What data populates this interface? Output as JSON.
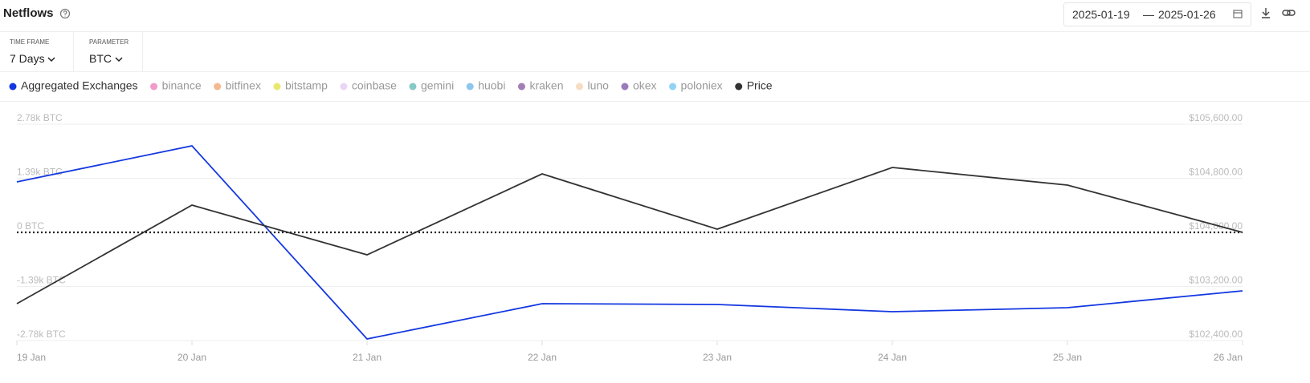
{
  "header": {
    "title": "Netflows",
    "date_from": "2025-01-19",
    "date_separator": "—",
    "date_to": "2025-01-26"
  },
  "filters": [
    {
      "label": "TIME FRAME",
      "value": "7 Days"
    },
    {
      "label": "PARAMETER",
      "value": "BTC"
    }
  ],
  "chart_data": {
    "type": "line",
    "categories": [
      "19 Jan",
      "20 Jan",
      "21 Jan",
      "22 Jan",
      "23 Jan",
      "24 Jan",
      "25 Jan",
      "26 Jan"
    ],
    "series": [
      {
        "name": "Aggregated Exchanges",
        "color": "#1438e0",
        "values": [
          1297,
          2224,
          -2739,
          -1833,
          -1853,
          -2039,
          -1936,
          -1503
        ]
      },
      {
        "name": "Price",
        "color": "#333333",
        "axis": "y2",
        "values": [
          102945,
          104403,
          103668,
          104865,
          104047,
          104960,
          104699,
          104000
        ]
      }
    ],
    "hidden_series": [
      {
        "name": "binance",
        "color": "#f29ac9"
      },
      {
        "name": "bitfinex",
        "color": "#f5b88f"
      },
      {
        "name": "bitstamp",
        "color": "#e8e870"
      },
      {
        "name": "coinbase",
        "color": "#ead5f6"
      },
      {
        "name": "gemini",
        "color": "#86c9c5"
      },
      {
        "name": "huobi",
        "color": "#8ec7ee"
      },
      {
        "name": "kraken",
        "color": "#a57eb3"
      },
      {
        "name": "luno",
        "color": "#f6dcc2"
      },
      {
        "name": "okex",
        "color": "#9a7bbb"
      },
      {
        "name": "poloniex",
        "color": "#90d3f5"
      }
    ],
    "legend_order": [
      0,
      "h0",
      "h1",
      "h2",
      "h3",
      "h4",
      "h5",
      "h6",
      "h7",
      "h8",
      "h9",
      1
    ],
    "ylim": [
      -2780,
      2780
    ],
    "yticks": [
      {
        "value": 2780,
        "label": "2.78k BTC"
      },
      {
        "value": 1390,
        "label": "1.39k BTC"
      },
      {
        "value": 0,
        "label": "0 BTC"
      },
      {
        "value": -1390,
        "label": "-1.39k BTC"
      },
      {
        "value": -2780,
        "label": "-2.78k BTC"
      }
    ],
    "y2lim": [
      102400,
      105600
    ],
    "y2ticks": [
      {
        "value": 105600,
        "label": "$105,600.00"
      },
      {
        "value": 104800,
        "label": "$104,800.00"
      },
      {
        "value": 104000,
        "label": "$104,000.00"
      },
      {
        "value": 103200,
        "label": "$103,200.00"
      },
      {
        "value": 102400,
        "label": "$102,400.00"
      }
    ],
    "grid": true
  }
}
